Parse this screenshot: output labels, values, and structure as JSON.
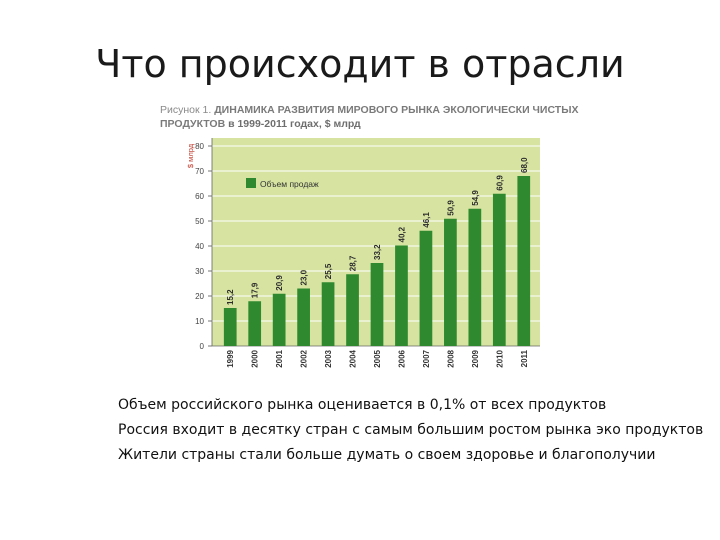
{
  "slide": {
    "title": "Что происходит в отрасли"
  },
  "figure": {
    "caption_prefix": "Рисунок 1.",
    "caption_title": "ДИНАМИКА РАЗВИТИЯ МИРОВОГО РЫНКА ЭКОЛОГИЧЕСКИ ЧИСТЫХ ПРОДУКТОВ",
    "caption_suffix": "в 1999-2011 годах, $ млрд"
  },
  "chart_data": {
    "type": "bar",
    "ylabel": "$ млрд",
    "ylim": [
      0,
      80
    ],
    "yticks": [
      "0",
      "10",
      "20",
      "30",
      "40",
      "50",
      "60",
      "70",
      "80"
    ],
    "categories": [
      "1999",
      "2000",
      "2001",
      "2002",
      "2003",
      "2004",
      "2005",
      "2006",
      "2007",
      "2008",
      "2009",
      "2010",
      "2011"
    ],
    "series": [
      {
        "name": "Объем продаж",
        "values": [
          15.2,
          17.9,
          20.9,
          23.0,
          25.5,
          28.7,
          33.2,
          40.2,
          46.1,
          50.9,
          54.9,
          60.9,
          68.0
        ]
      }
    ],
    "value_labels": [
      "15,2",
      "17,9",
      "20,9",
      "23,0",
      "25,5",
      "28,7",
      "33,2",
      "40,2",
      "46,1",
      "50,9",
      "54,9",
      "60,9",
      "68,0"
    ],
    "legend_position": "top-left",
    "grid": true,
    "colors": {
      "bar": "#2f8a2f",
      "background": "#d6e3a1",
      "grid": "#ffffff"
    }
  },
  "bullets": [
    "Объем российского рынка оценивается в 0,1% от всех продуктов",
    "Россия входит в десятку стран с самым большим ростом рынка эко продуктов",
    "Жители страны стали больше думать о своем здоровье и благополучии"
  ]
}
